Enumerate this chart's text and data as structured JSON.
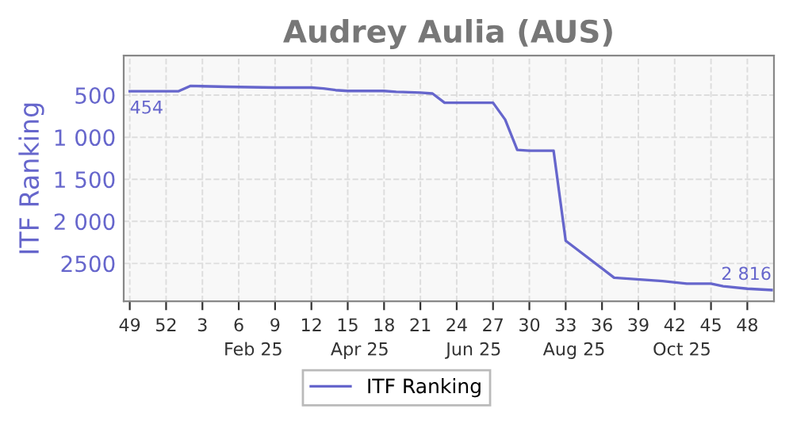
{
  "chart_data": {
    "type": "line",
    "title": "Audrey Aulia (AUS)",
    "ylabel": "ITF Ranking",
    "categories": [
      "49",
      null,
      null,
      "52",
      null,
      null,
      "3",
      null,
      null,
      "6",
      null,
      null,
      "9",
      null,
      null,
      "12",
      null,
      null,
      "15",
      null,
      null,
      "18",
      null,
      null,
      "21",
      null,
      null,
      "24",
      null,
      null,
      "27",
      null,
      null,
      "30",
      null,
      null,
      "33",
      null,
      null,
      "36",
      null,
      null,
      "39",
      null,
      null,
      "42",
      null,
      null,
      "45",
      null,
      null,
      "48",
      null,
      null
    ],
    "series": [
      {
        "name": "ITF Ranking",
        "color": "#6666cc",
        "values": [
          454,
          454,
          454,
          454,
          454,
          390,
          null,
          null,
          400,
          null,
          null,
          null,
          410,
          null,
          null,
          410,
          420,
          440,
          450,
          null,
          null,
          450,
          460,
          null,
          470,
          480,
          590,
          null,
          null,
          null,
          590,
          790,
          1150,
          1160,
          null,
          1160,
          2230,
          null,
          null,
          null,
          2670,
          null,
          null,
          null,
          2710,
          null,
          2740,
          null,
          2740,
          2770,
          null,
          2800,
          null,
          2816
        ]
      }
    ],
    "annotations": [
      {
        "text": "454",
        "x": "49",
        "y": 454
      },
      {
        "text": "2 816",
        "y": 2816
      },
      "Feb 25",
      "Apr 25",
      "Jun 25",
      "Aug 25",
      "Oct 25"
    ],
    "ylim": [
      2950,
      30
    ],
    "yticks": [
      500,
      {
        "value": 1000,
        "label": "1 000"
      },
      {
        "value": 1500,
        "label": "1 500"
      },
      {
        "value": 2000,
        "label": "2 000"
      },
      2500
    ],
    "grid": true,
    "legend": "bottom",
    "marker": "none",
    "line_style": "solid"
  }
}
